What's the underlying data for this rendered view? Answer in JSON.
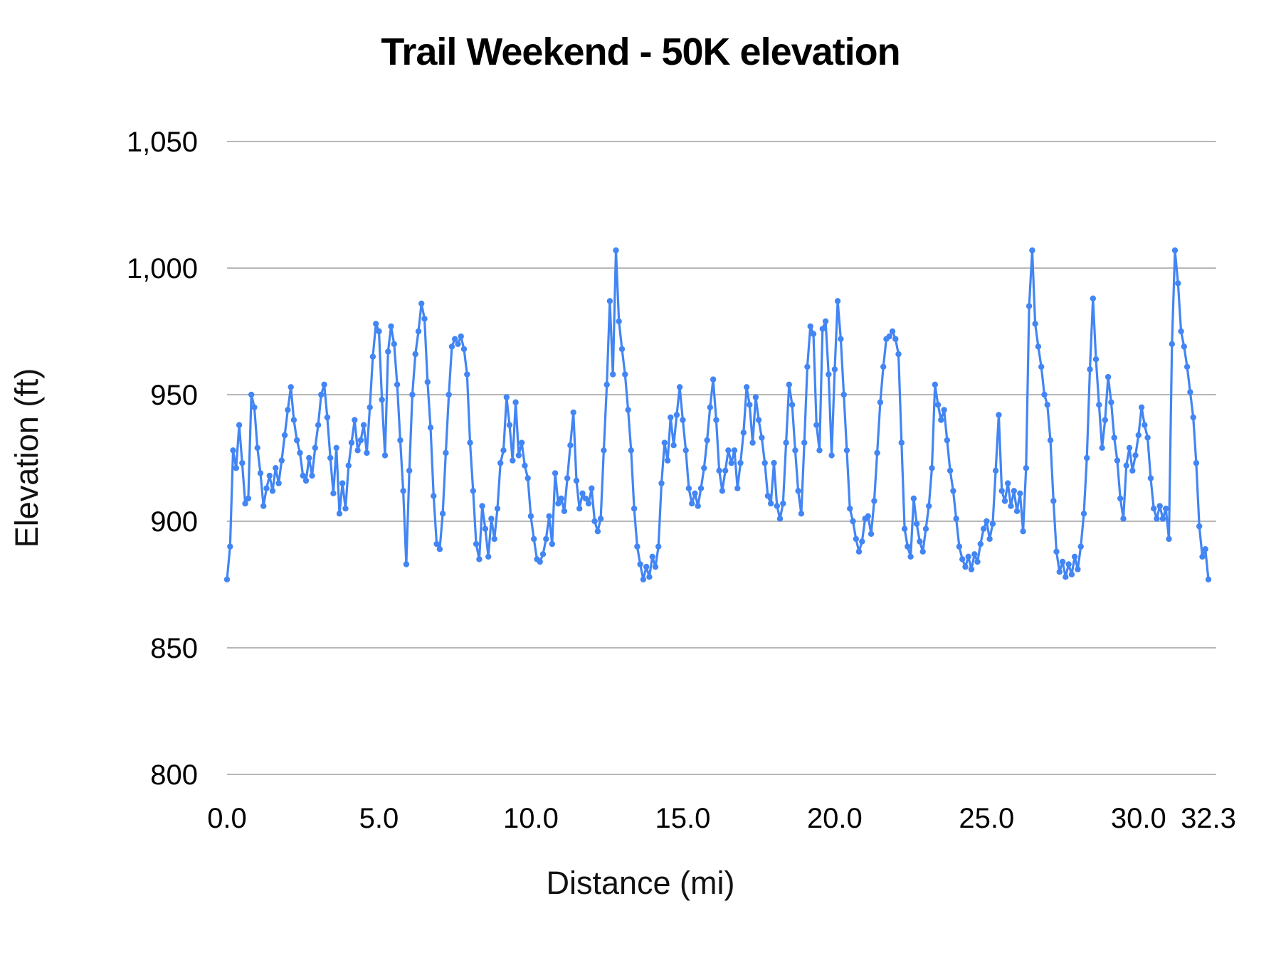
{
  "chart_data": {
    "type": "line",
    "title": "Trail Weekend - 50K elevation",
    "xlabel": "Distance (mi)",
    "ylabel": "Elevation (ft)",
    "legend": "none",
    "grid": "horizontal-only",
    "xlim": [
      0,
      32.3
    ],
    "ylim": [
      800,
      1050
    ],
    "x_tick_labels": [
      "0.0",
      "5.0",
      "10.0",
      "15.0",
      "20.0",
      "25.0",
      "30.0",
      "32.3"
    ],
    "x_tick_values": [
      0,
      5,
      10,
      15,
      20,
      25,
      30,
      32.3
    ],
    "y_tick_labels": [
      "800",
      "850",
      "900",
      "950",
      "1,000",
      "1,050"
    ],
    "y_tick_values": [
      800,
      850,
      900,
      950,
      1000,
      1050
    ],
    "series_name": "elevation",
    "series_color": "#4285f4",
    "gridline_color": "#b7b7b7",
    "tick_label_color": "#000000",
    "marker_radius": 4.2,
    "line_width": 3.2,
    "x_start": 0,
    "x_step": 0.1,
    "elevations": [
      877,
      890,
      928,
      921,
      938,
      923,
      907,
      909,
      950,
      945,
      929,
      919,
      906,
      913,
      918,
      912,
      921,
      915,
      924,
      934,
      944,
      953,
      940,
      932,
      927,
      918,
      916,
      925,
      918,
      929,
      938,
      950,
      954,
      941,
      925,
      911,
      929,
      903,
      915,
      905,
      922,
      931,
      940,
      928,
      932,
      938,
      927,
      945,
      965,
      978,
      975,
      948,
      926,
      967,
      977,
      970,
      954,
      932,
      912,
      883,
      920,
      950,
      966,
      975,
      986,
      980,
      955,
      937,
      910,
      891,
      889,
      903,
      927,
      950,
      969,
      972,
      970,
      973,
      968,
      958,
      931,
      912,
      891,
      885,
      906,
      897,
      886,
      901,
      893,
      905,
      923,
      928,
      949,
      938,
      924,
      947,
      926,
      931,
      922,
      917,
      902,
      893,
      885,
      884,
      887,
      893,
      902,
      891,
      919,
      907,
      909,
      904,
      917,
      930,
      943,
      916,
      905,
      911,
      909,
      907,
      913,
      900,
      896,
      901,
      928,
      954,
      987,
      958,
      1007,
      979,
      968,
      958,
      944,
      928,
      905,
      890,
      883,
      877,
      882,
      878,
      886,
      882,
      890,
      915,
      931,
      924,
      941,
      930,
      942,
      953,
      940,
      928,
      913,
      907,
      911,
      906,
      913,
      921,
      932,
      945,
      956,
      940,
      920,
      912,
      920,
      928,
      923,
      928,
      913,
      923,
      935,
      953,
      946,
      931,
      949,
      940,
      933,
      923,
      910,
      907,
      923,
      906,
      901,
      907,
      931,
      954,
      946,
      928,
      912,
      903,
      931,
      961,
      977,
      974,
      938,
      928,
      976,
      979,
      958,
      926,
      960,
      987,
      972,
      950,
      928,
      905,
      900,
      893,
      888,
      892,
      901,
      902,
      895,
      908,
      927,
      947,
      961,
      972,
      973,
      975,
      972,
      966,
      931,
      897,
      890,
      886,
      909,
      899,
      892,
      888,
      897,
      906,
      921,
      954,
      946,
      940,
      944,
      932,
      920,
      912,
      901,
      890,
      885,
      882,
      886,
      881,
      887,
      884,
      891,
      897,
      900,
      893,
      899,
      920,
      942,
      912,
      908,
      915,
      906,
      912,
      904,
      911,
      896,
      921,
      985,
      1007,
      978,
      969,
      961,
      950,
      946,
      932,
      908,
      888,
      880,
      884,
      878,
      883,
      879,
      886,
      881,
      890,
      903,
      925,
      960,
      988,
      964,
      946,
      929,
      940,
      957,
      947,
      933,
      924,
      909,
      901,
      922,
      929,
      920,
      926,
      934,
      945,
      938,
      933,
      917,
      905,
      901,
      906,
      901,
      905,
      893,
      970,
      1007,
      994,
      975,
      969,
      961,
      951,
      941,
      923,
      898,
      886,
      889,
      877
    ]
  }
}
